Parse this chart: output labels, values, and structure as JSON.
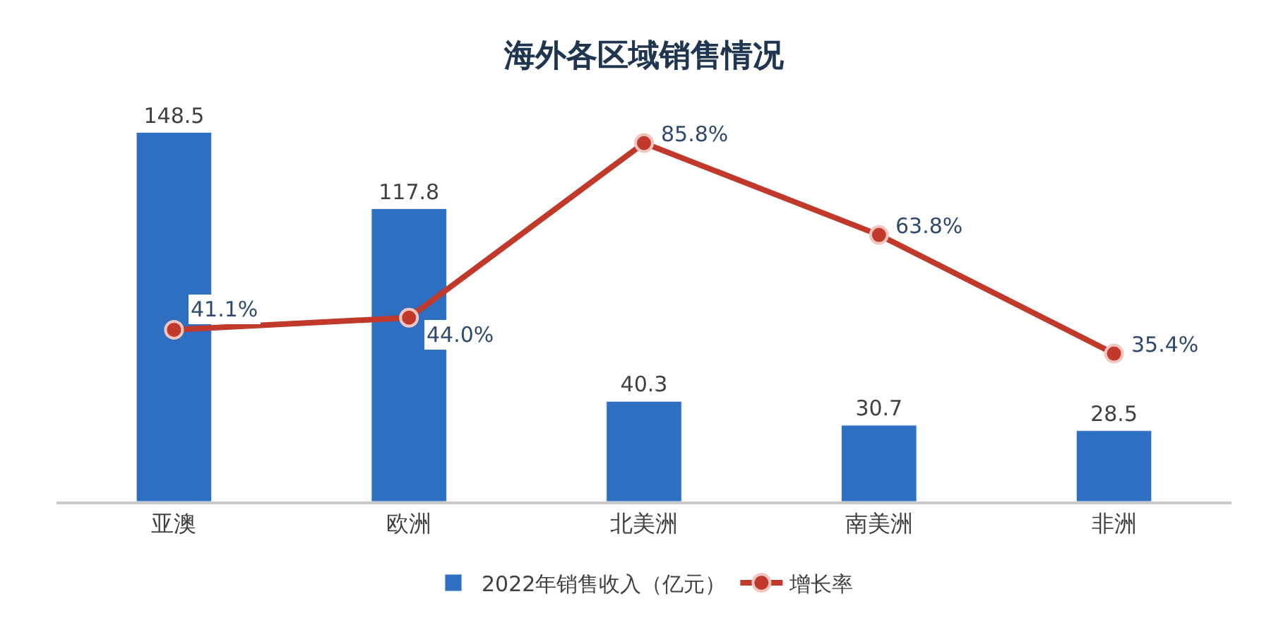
{
  "chart_data": {
    "type": "bar",
    "title": "海外各区域销售情况",
    "categories": [
      "亚澳",
      "欧洲",
      "北美洲",
      "南美洲",
      "非洲"
    ],
    "series": [
      {
        "name": "2022年销售收入（亿元）",
        "color": "#2f6fc1",
        "values": [
          148.5,
          117.8,
          40.3,
          30.7,
          28.5
        ],
        "data_labels": true
      },
      {
        "name": "增长率",
        "type": "line",
        "axis": "y2",
        "color": "#c0392b",
        "marker": "circle",
        "values": [
          41.1,
          44.0,
          85.8,
          63.8,
          35.4
        ],
        "value_labels": [
          "41.1%",
          "44.0%",
          "85.8%",
          "63.8%",
          "35.4%"
        ]
      }
    ],
    "tick_labels": "x",
    "legend": "bottom"
  }
}
